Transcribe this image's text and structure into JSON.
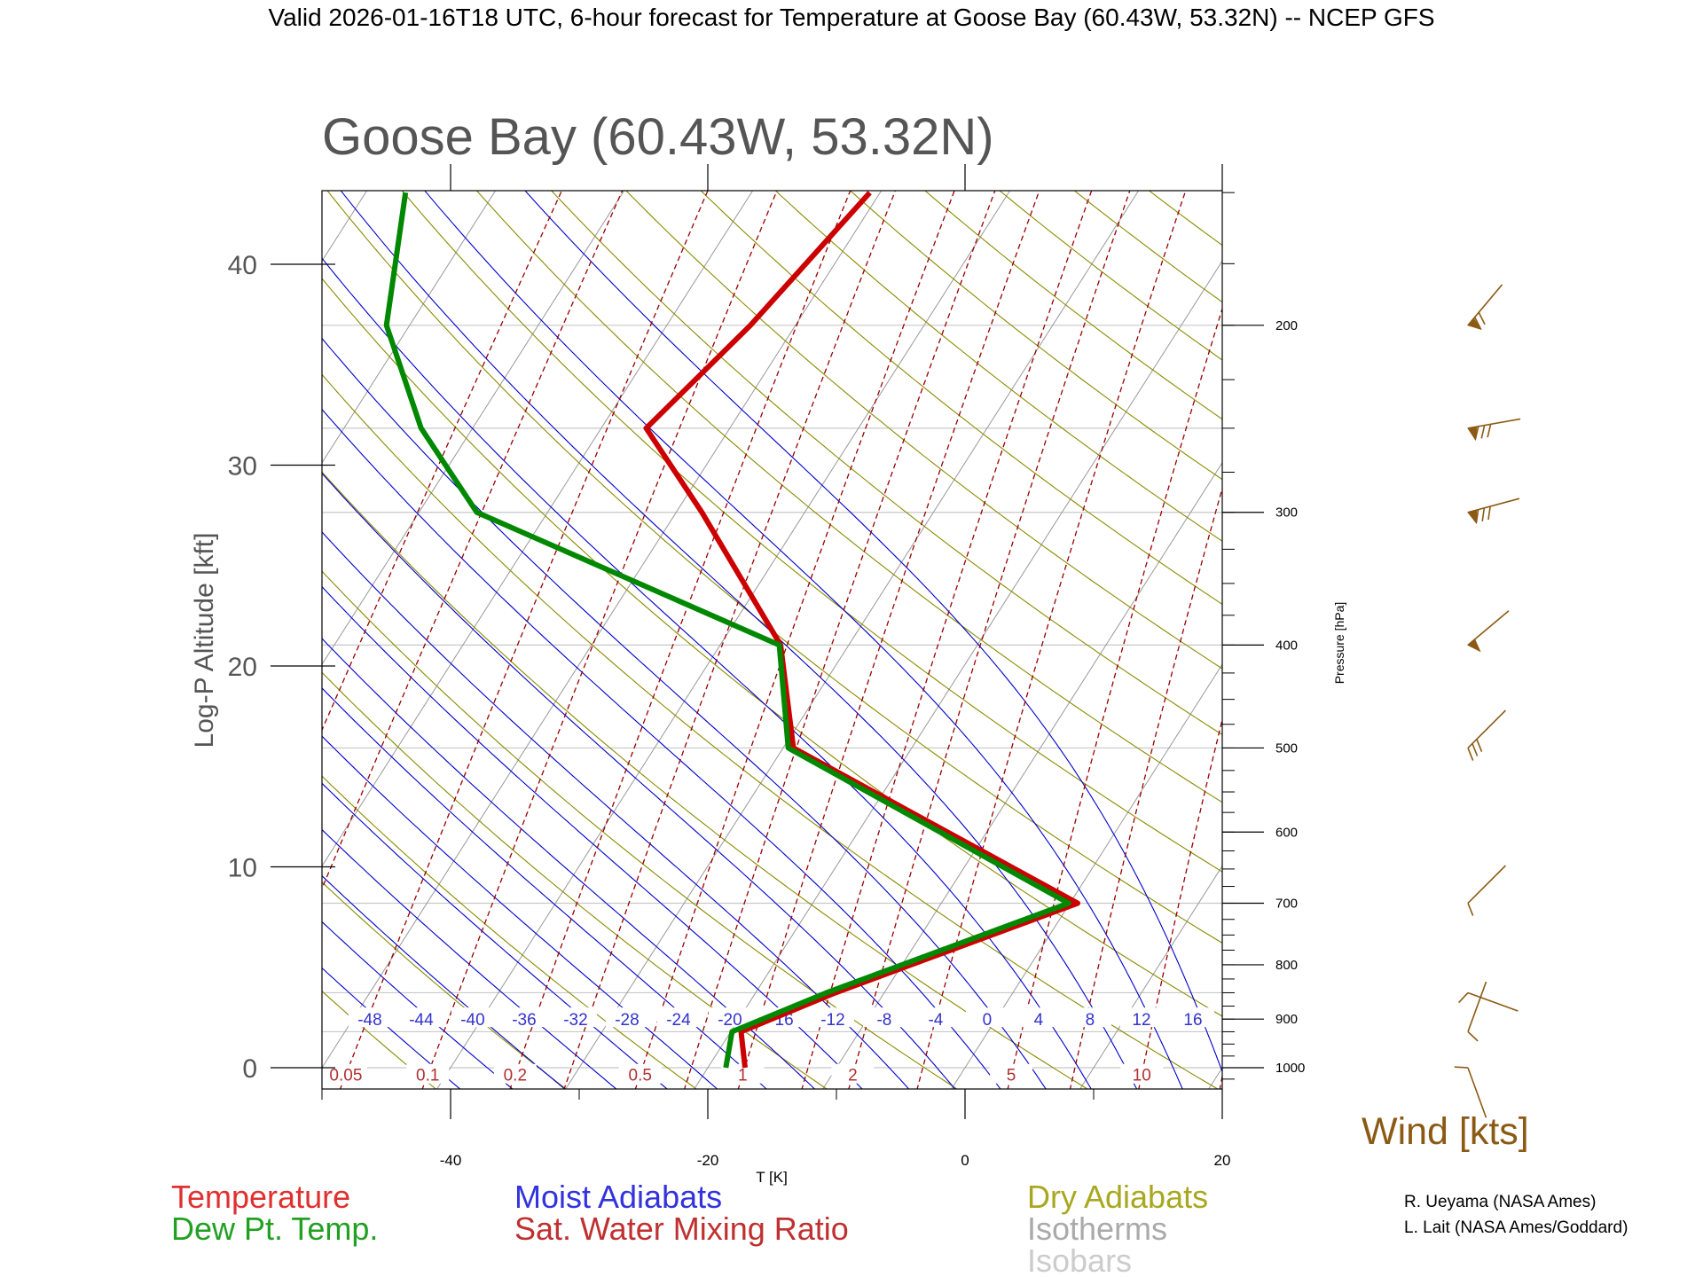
{
  "header": {
    "top_title": "Valid 2026-01-16T18 UTC, 6-hour forecast for Temperature at Goose Bay (60.43W, 53.32N) -- NCEP GFS",
    "plot_title": "Goose Bay (60.43W, 53.32N)"
  },
  "chart_data": {
    "type": "line",
    "subtype": "skew-T log-P sounding",
    "xlabel": "T [K]",
    "ylabel": "Log-P Altitude [kft]",
    "y2label": "Pressure [hPa]",
    "xlim": [
      -50,
      20
    ],
    "ylim_pressure_hpa": [
      1050,
      140
    ],
    "x_ticks": [
      "-40",
      "-20",
      "0",
      "20"
    ],
    "y_ticks": [
      "0",
      "10",
      "20",
      "30",
      "40"
    ],
    "pressure_ticks": [
      "1000",
      "900",
      "800",
      "700",
      "600",
      "500",
      "400",
      "300",
      "200"
    ],
    "moist_adiabat_labels": [
      "-48",
      "-44",
      "-40",
      "-36",
      "-32",
      "-28",
      "-24",
      "-20",
      "-16",
      "-12",
      "-8",
      "-4",
      "0",
      "4",
      "8",
      "12",
      "16"
    ],
    "mixing_ratio_labels": [
      "0.05",
      "0.1",
      "0.2",
      "0.5",
      "1",
      "2",
      "5",
      "10"
    ],
    "series": [
      {
        "name": "Temperature",
        "color": "#cc0000",
        "pressure_hpa": [
          1000,
          925,
          850,
          700,
          500,
          400,
          300,
          250,
          200,
          150
        ],
        "values": [
          -17.1,
          -19.2,
          -13.8,
          0.6,
          -29.2,
          -35.3,
          -48.0,
          -56.5,
          -53.5,
          -50.8
        ]
      },
      {
        "name": "Dew Pt. Temp.",
        "color": "#008800",
        "pressure_hpa": [
          1000,
          925,
          850,
          700,
          500,
          400,
          300,
          250,
          200,
          150
        ],
        "values": [
          -18.6,
          -19.9,
          -14.5,
          -0.1,
          -29.6,
          -35.4,
          -65.5,
          -74.0,
          -81.8,
          -86.9
        ]
      }
    ],
    "winds": [
      {
        "pressure_hpa": 200,
        "label": "flags",
        "icon": "wind-barb-icon"
      },
      {
        "pressure_hpa": 250,
        "label": "flags",
        "icon": "wind-barb-icon"
      },
      {
        "pressure_hpa": 300,
        "label": "flags",
        "icon": "wind-barb-icon"
      },
      {
        "pressure_hpa": 400,
        "label": "flag",
        "icon": "wind-barb-icon"
      },
      {
        "pressure_hpa": 500,
        "label": "barbs",
        "icon": "wind-barb-icon"
      },
      {
        "pressure_hpa": 700,
        "label": "barb",
        "icon": "wind-barb-icon"
      },
      {
        "pressure_hpa": 850,
        "label": "barb",
        "icon": "wind-barb-icon"
      },
      {
        "pressure_hpa": 925,
        "label": "barb",
        "icon": "wind-barb-icon"
      },
      {
        "pressure_hpa": 1000,
        "label": "barb",
        "icon": "wind-barb-icon"
      }
    ],
    "legend": {
      "temperature": "Temperature",
      "dewpoint": "Dew Pt. Temp.",
      "moist_adiabats": "Moist Adiabats",
      "mixing_ratio": "Sat. Water Mixing Ratio",
      "dry_adiabats": "Dry Adiabats",
      "isotherms": "Isotherms",
      "isobars": "Isobars",
      "wind": "Wind [kts]"
    },
    "credits": [
      "R. Ueyama (NASA Ames)",
      "L. Lait (NASA Ames/Goddard)"
    ],
    "colors": {
      "temperature": "#cc0000",
      "dewpoint": "#008800",
      "moist": "#0000cc",
      "mixing": "#990000",
      "dry": "#8b8b00",
      "isotherm": "#999999",
      "isobar": "#c8c8c8",
      "wind": "#8b5a14"
    },
    "grid": true
  }
}
